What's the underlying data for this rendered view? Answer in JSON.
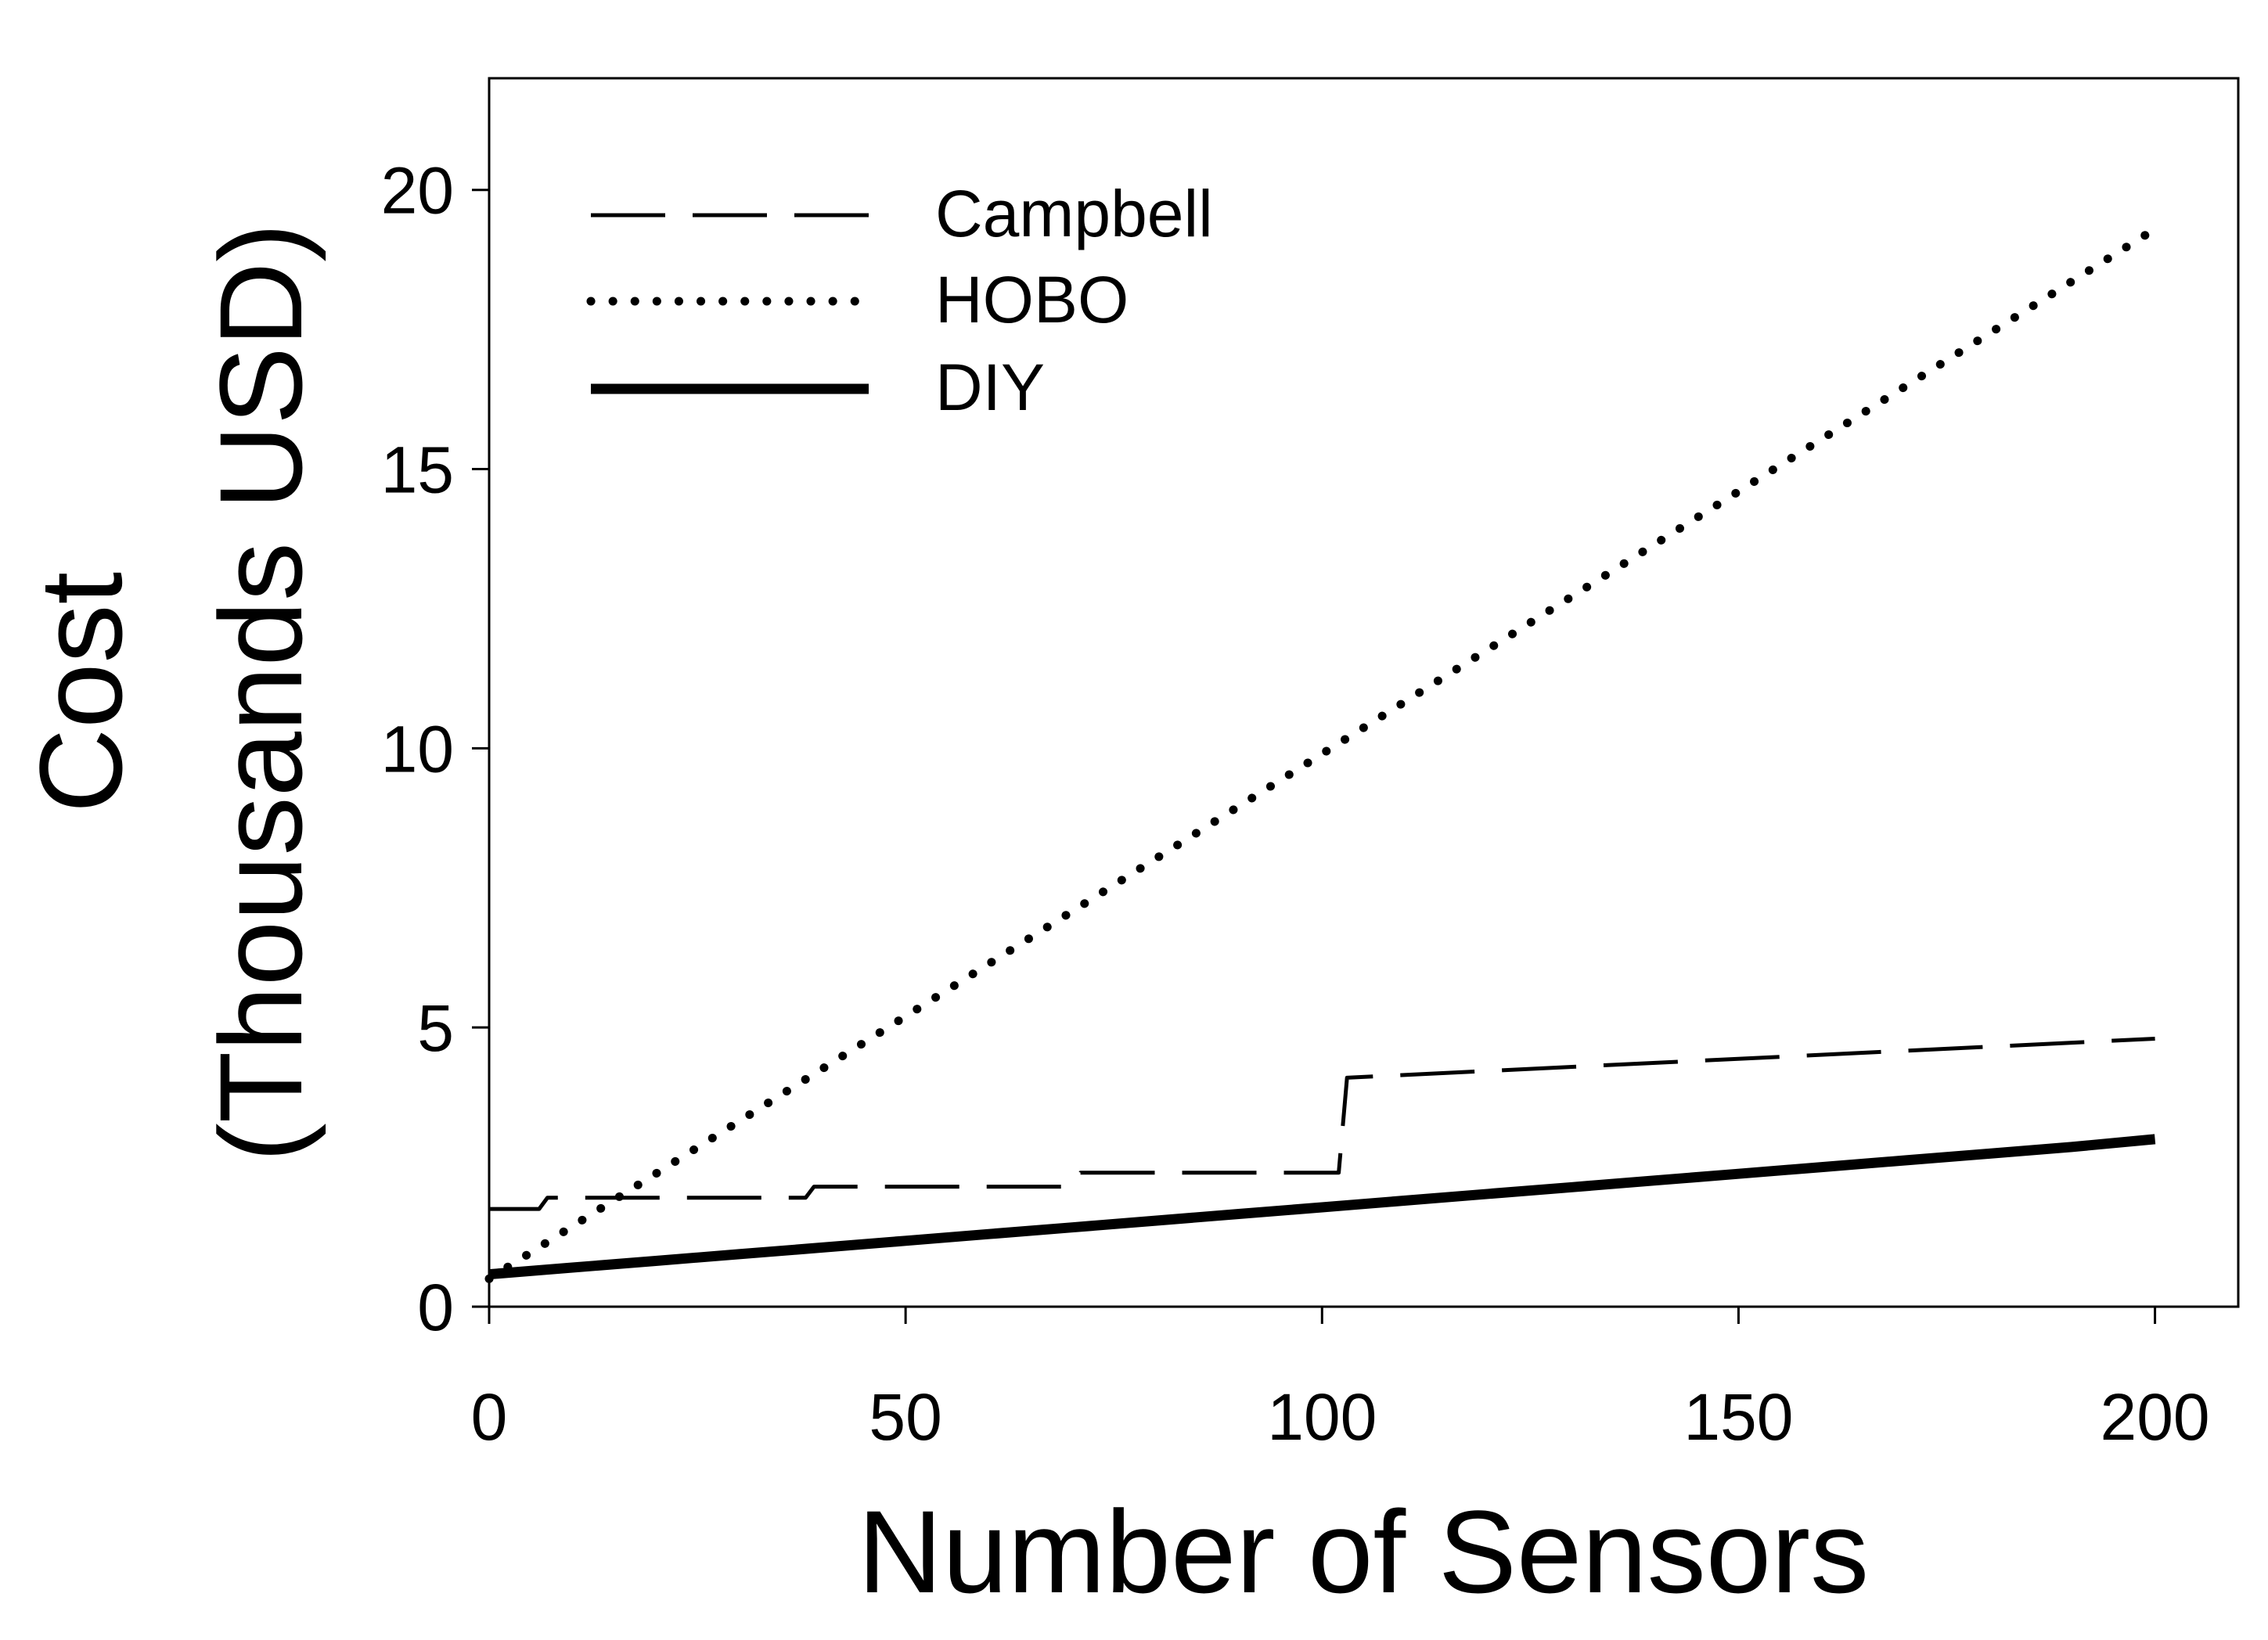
{
  "chart_data": {
    "type": "line",
    "title": "",
    "xlabel": "Number of Sensors",
    "ylabel_line1": "Cost",
    "ylabel_line2": "(Thousands USD)",
    "xlim": [
      0,
      210
    ],
    "ylim": [
      0,
      22
    ],
    "xticks": [
      0,
      50,
      100,
      150,
      200
    ],
    "yticks": [
      0,
      5,
      10,
      15,
      20
    ],
    "grid": false,
    "legend_position": "top-left",
    "series": [
      {
        "name": "Campbell",
        "style": "dashed",
        "color": "#000000",
        "points": [
          [
            0,
            1.75
          ],
          [
            6,
            1.75
          ],
          [
            7,
            1.95
          ],
          [
            38,
            1.95
          ],
          [
            39,
            2.15
          ],
          [
            70,
            2.15
          ],
          [
            71,
            2.4
          ],
          [
            102,
            2.4
          ],
          [
            103,
            4.1
          ],
          [
            200,
            4.8
          ]
        ]
      },
      {
        "name": "HOBO",
        "style": "dotted",
        "color": "#000000",
        "points": [
          [
            0,
            0.5
          ],
          [
            200,
            19.3
          ]
        ]
      },
      {
        "name": "DIY",
        "style": "solid",
        "color": "#000000",
        "points": [
          [
            0,
            0.58
          ],
          [
            10,
            0.7
          ],
          [
            20,
            0.82
          ],
          [
            30,
            0.94
          ],
          [
            40,
            1.06
          ],
          [
            50,
            1.18
          ],
          [
            60,
            1.3
          ],
          [
            70,
            1.42
          ],
          [
            80,
            1.54
          ],
          [
            90,
            1.66
          ],
          [
            100,
            1.78
          ],
          [
            110,
            1.9
          ],
          [
            120,
            2.02
          ],
          [
            130,
            2.14
          ],
          [
            140,
            2.26
          ],
          [
            150,
            2.38
          ],
          [
            160,
            2.5
          ],
          [
            170,
            2.62
          ],
          [
            180,
            2.74
          ],
          [
            190,
            2.86
          ],
          [
            200,
            3.0
          ]
        ]
      }
    ]
  }
}
